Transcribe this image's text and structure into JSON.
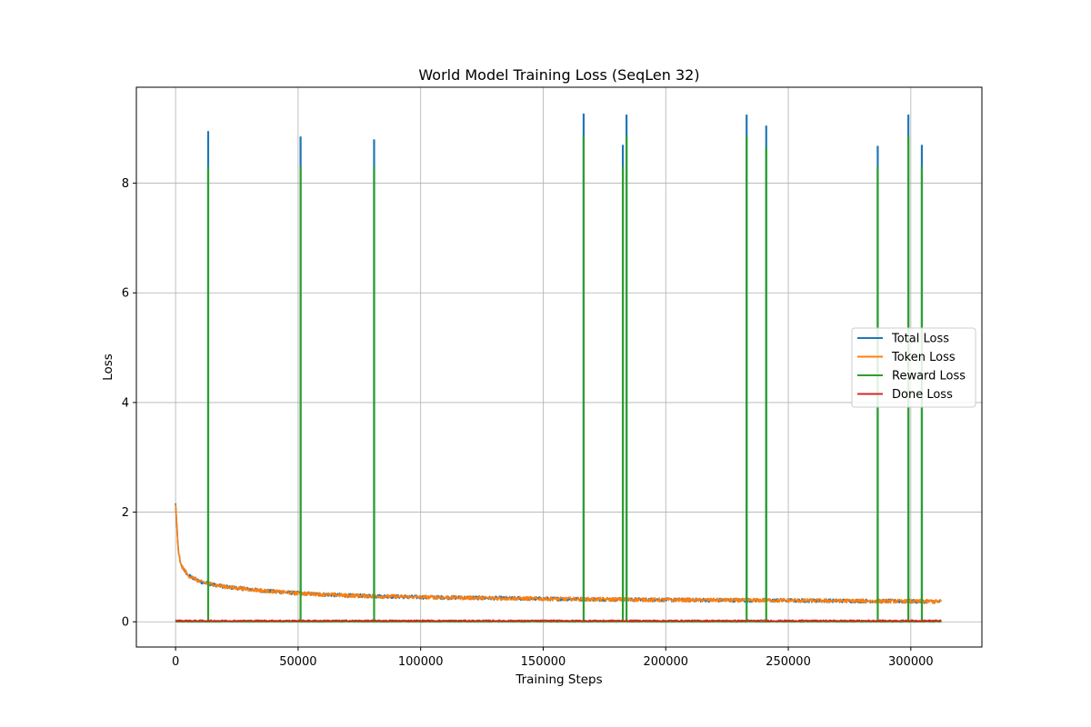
{
  "chart_data": {
    "type": "line",
    "title": "World Model Training Loss (SeqLen 32)",
    "xlabel": "Training Steps",
    "ylabel": "Loss",
    "xlim": [
      -16000,
      329000
    ],
    "ylim": [
      -0.46,
      9.75
    ],
    "xticks": [
      0,
      50000,
      100000,
      150000,
      200000,
      250000,
      300000
    ],
    "xtick_labels": [
      "0",
      "50000",
      "100000",
      "150000",
      "200000",
      "250000",
      "300000"
    ],
    "yticks": [
      0,
      2,
      4,
      6,
      8
    ],
    "ytick_labels": [
      "0",
      "2",
      "4",
      "6",
      "8"
    ],
    "grid": true,
    "legend_position": "center-right",
    "x_end": 312500,
    "series": [
      {
        "name": "Total Loss",
        "color": "#1f77b4",
        "baseline": [
          [
            0,
            2.15
          ],
          [
            1000,
            1.35
          ],
          [
            2000,
            1.05
          ],
          [
            5000,
            0.85
          ],
          [
            10000,
            0.73
          ],
          [
            20000,
            0.64
          ],
          [
            35000,
            0.57
          ],
          [
            50000,
            0.52
          ],
          [
            70000,
            0.48
          ],
          [
            100000,
            0.45
          ],
          [
            150000,
            0.42
          ],
          [
            200000,
            0.4
          ],
          [
            250000,
            0.39
          ],
          [
            312500,
            0.37
          ]
        ],
        "spikes": [
          [
            13300,
            8.95
          ],
          [
            51000,
            8.85
          ],
          [
            81000,
            8.8
          ],
          [
            166500,
            9.27
          ],
          [
            182500,
            8.7
          ],
          [
            184000,
            9.25
          ],
          [
            233000,
            9.25
          ],
          [
            241000,
            9.05
          ],
          [
            286500,
            8.68
          ],
          [
            299000,
            9.25
          ],
          [
            304500,
            8.7
          ]
        ]
      },
      {
        "name": "Token Loss",
        "color": "#ff7f0e",
        "baseline": [
          [
            0,
            2.15
          ],
          [
            1000,
            1.35
          ],
          [
            2000,
            1.05
          ],
          [
            5000,
            0.85
          ],
          [
            10000,
            0.73
          ],
          [
            20000,
            0.64
          ],
          [
            35000,
            0.57
          ],
          [
            50000,
            0.52
          ],
          [
            70000,
            0.48
          ],
          [
            100000,
            0.45
          ],
          [
            150000,
            0.42
          ],
          [
            200000,
            0.4
          ],
          [
            250000,
            0.39
          ],
          [
            312500,
            0.37
          ]
        ],
        "spikes": []
      },
      {
        "name": "Reward Loss",
        "color": "#2ca02c",
        "baseline": [
          [
            0,
            0.0
          ],
          [
            312500,
            0.0
          ]
        ],
        "spikes": [
          [
            13300,
            8.3
          ],
          [
            51000,
            8.3
          ],
          [
            81000,
            8.3
          ],
          [
            166500,
            8.85
          ],
          [
            182500,
            8.3
          ],
          [
            184000,
            8.85
          ],
          [
            233000,
            8.85
          ],
          [
            241000,
            8.65
          ],
          [
            286500,
            8.3
          ],
          [
            299000,
            8.85
          ],
          [
            304500,
            8.3
          ]
        ]
      },
      {
        "name": "Done Loss",
        "color": "#d62728",
        "baseline": [
          [
            0,
            0.02
          ],
          [
            312500,
            0.02
          ]
        ],
        "spikes": []
      }
    ]
  }
}
